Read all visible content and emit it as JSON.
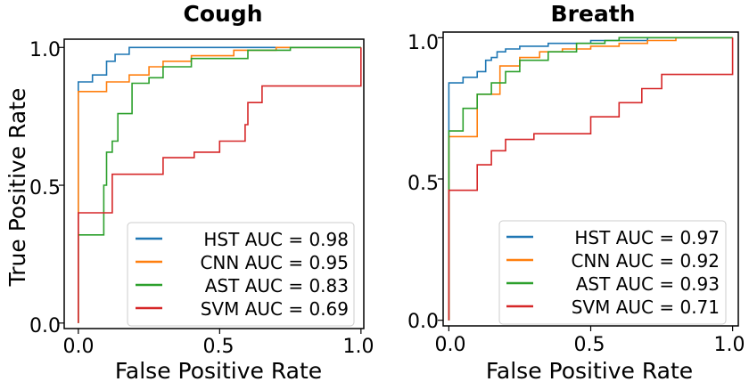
{
  "chart_data": [
    {
      "type": "line",
      "title": "Cough",
      "xlabel": "False Positive Rate",
      "ylabel": "True Positive Rate",
      "xlim": [
        -0.05,
        1.01
      ],
      "ylim": [
        -0.02,
        1.03
      ],
      "xticks": [
        0.0,
        0.5,
        1.0
      ],
      "xtick_labels": [
        "0.0",
        "0.5",
        "1.0"
      ],
      "yticks": [
        0.0,
        0.5,
        1.0
      ],
      "ytick_labels": [
        "0.0",
        "0.5",
        "1.0"
      ],
      "legend_position": "lower-right",
      "series": [
        {
          "name": "HST AUC = 0.98",
          "color": "#1f77b4",
          "x": [
            0.0,
            0.0,
            0.0,
            0.0,
            0.05,
            0.05,
            0.1,
            0.1,
            0.13,
            0.13,
            0.18,
            0.18,
            1.0
          ],
          "y": [
            0.0,
            0.5,
            0.8,
            0.875,
            0.875,
            0.9,
            0.9,
            0.95,
            0.95,
            0.975,
            0.975,
            1.0,
            1.0
          ]
        },
        {
          "name": "CNN AUC = 0.95",
          "color": "#ff7f0e",
          "x": [
            0.0,
            0.0,
            0.0,
            0.1,
            0.1,
            0.18,
            0.18,
            0.25,
            0.25,
            0.3,
            0.3,
            0.4,
            0.4,
            0.55,
            0.55,
            0.7,
            0.7,
            1.0
          ],
          "y": [
            0.0,
            0.5,
            0.84,
            0.84,
            0.875,
            0.875,
            0.9,
            0.9,
            0.93,
            0.93,
            0.95,
            0.95,
            0.97,
            0.97,
            0.99,
            0.99,
            1.0,
            1.0
          ]
        },
        {
          "name": "AST AUC = 0.83",
          "color": "#2ca02c",
          "x": [
            0.0,
            0.0,
            0.0,
            0.09,
            0.09,
            0.1,
            0.1,
            0.12,
            0.12,
            0.14,
            0.14,
            0.19,
            0.19,
            0.25,
            0.25,
            0.3,
            0.3,
            0.4,
            0.4,
            0.6,
            0.6,
            0.75,
            0.75,
            1.0
          ],
          "y": [
            0.0,
            0.3,
            0.32,
            0.32,
            0.5,
            0.5,
            0.62,
            0.62,
            0.66,
            0.66,
            0.76,
            0.76,
            0.87,
            0.87,
            0.89,
            0.89,
            0.93,
            0.93,
            0.96,
            0.96,
            0.99,
            0.99,
            1.0,
            1.0
          ]
        },
        {
          "name": "SVM AUC = 0.69",
          "color": "#d62728",
          "x": [
            0.0,
            0.0,
            0.0,
            0.12,
            0.12,
            0.3,
            0.3,
            0.41,
            0.41,
            0.5,
            0.5,
            0.59,
            0.59,
            0.6,
            0.6,
            0.65,
            0.65,
            0.8,
            0.8,
            1.0,
            1.0
          ],
          "y": [
            0.0,
            0.2,
            0.4,
            0.4,
            0.54,
            0.54,
            0.6,
            0.6,
            0.62,
            0.62,
            0.66,
            0.66,
            0.72,
            0.72,
            0.8,
            0.8,
            0.86,
            0.86,
            0.86,
            0.86,
            1.0
          ]
        }
      ]
    },
    {
      "type": "line",
      "title": "Breath",
      "xlabel": "False Positive Rate",
      "ylabel": "",
      "xlim": [
        -0.02,
        1.02
      ],
      "ylim": [
        -0.02,
        1.02
      ],
      "xticks": [
        0.0,
        0.5,
        1.0
      ],
      "xtick_labels": [
        "0.0",
        "0.5",
        "1.0"
      ],
      "yticks": [
        0.0,
        0.5,
        1.0
      ],
      "ytick_labels": [
        "0.0",
        "0.5",
        "1.0"
      ],
      "legend_position": "lower-right",
      "series": [
        {
          "name": "HST AUC = 0.97",
          "color": "#1f77b4",
          "x": [
            0.0,
            0.0,
            0.0,
            0.05,
            0.05,
            0.1,
            0.1,
            0.13,
            0.13,
            0.15,
            0.15,
            0.17,
            0.17,
            0.2,
            0.2,
            0.25,
            0.25,
            0.35,
            0.35,
            0.5,
            0.5,
            0.7,
            0.7,
            0.85,
            0.85,
            1.0
          ],
          "y": [
            0.0,
            0.7,
            0.84,
            0.84,
            0.86,
            0.86,
            0.88,
            0.88,
            0.92,
            0.92,
            0.93,
            0.93,
            0.95,
            0.95,
            0.96,
            0.96,
            0.97,
            0.97,
            0.98,
            0.98,
            0.99,
            0.99,
            1.0,
            1.0,
            1.0,
            1.0
          ]
        },
        {
          "name": "CNN AUC = 0.92",
          "color": "#ff7f0e",
          "x": [
            0.0,
            0.0,
            0.0,
            0.1,
            0.1,
            0.18,
            0.18,
            0.25,
            0.25,
            0.32,
            0.32,
            0.4,
            0.4,
            0.5,
            0.5,
            0.6,
            0.6,
            0.7,
            0.7,
            0.8,
            0.8,
            1.0
          ],
          "y": [
            0.0,
            0.4,
            0.65,
            0.65,
            0.8,
            0.8,
            0.9,
            0.9,
            0.93,
            0.93,
            0.95,
            0.95,
            0.96,
            0.96,
            0.97,
            0.97,
            0.98,
            0.98,
            0.99,
            0.99,
            1.0,
            1.0
          ]
        },
        {
          "name": "AST AUC = 0.93",
          "color": "#2ca02c",
          "x": [
            0.0,
            0.0,
            0.0,
            0.05,
            0.05,
            0.1,
            0.1,
            0.15,
            0.15,
            0.2,
            0.2,
            0.25,
            0.25,
            0.35,
            0.35,
            0.45,
            0.45,
            0.55,
            0.55,
            0.6,
            0.6,
            1.0
          ],
          "y": [
            0.0,
            0.5,
            0.67,
            0.67,
            0.75,
            0.75,
            0.8,
            0.8,
            0.84,
            0.84,
            0.88,
            0.88,
            0.92,
            0.92,
            0.95,
            0.95,
            0.98,
            0.98,
            0.99,
            0.99,
            1.0,
            1.0
          ]
        },
        {
          "name": "SVM AUC = 0.71",
          "color": "#d62728",
          "x": [
            0.0,
            0.0,
            0.0,
            0.1,
            0.1,
            0.15,
            0.15,
            0.2,
            0.2,
            0.3,
            0.3,
            0.5,
            0.5,
            0.6,
            0.6,
            0.68,
            0.68,
            0.75,
            0.75,
            0.83,
            0.83,
            0.9,
            0.9,
            1.0,
            1.0
          ],
          "y": [
            0.0,
            0.2,
            0.46,
            0.46,
            0.55,
            0.55,
            0.6,
            0.6,
            0.64,
            0.64,
            0.66,
            0.66,
            0.72,
            0.72,
            0.77,
            0.77,
            0.82,
            0.82,
            0.87,
            0.87,
            0.87,
            0.87,
            0.87,
            0.87,
            1.0
          ]
        }
      ]
    }
  ]
}
